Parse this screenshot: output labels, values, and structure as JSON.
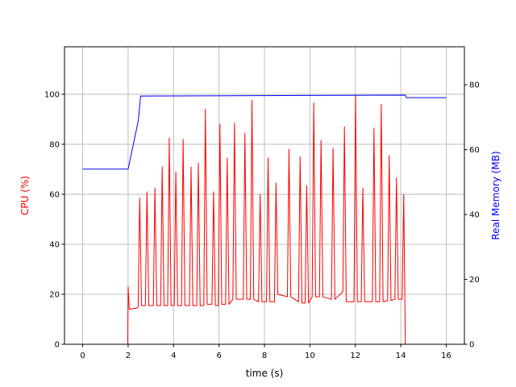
{
  "chart_data": {
    "type": "line",
    "xlabel": "time (s)",
    "ylabel": "CPU (%)",
    "y2label": "Real Memory (MB)",
    "ylabel_color": "#ff0000",
    "y2label_color": "#0000ff",
    "xlim": [
      -0.8,
      16.8
    ],
    "ylim": [
      0,
      119
    ],
    "y2lim": [
      0,
      91.7
    ],
    "xticks": [
      0,
      2,
      4,
      6,
      8,
      10,
      12,
      14,
      16
    ],
    "yticks": [
      0,
      20,
      40,
      60,
      80,
      100
    ],
    "y2ticks": [
      0,
      20,
      40,
      60,
      80
    ],
    "grid": true,
    "series": [
      {
        "color": "#ff0000",
        "axis": "y",
        "x": [
          0,
          1.98,
          2.0,
          2.05,
          2.4,
          2.44,
          2.51,
          2.59,
          2.76,
          2.83,
          2.91,
          3.11,
          3.18,
          3.26,
          3.43,
          3.5,
          3.58,
          3.74,
          3.81,
          3.89,
          4.03,
          4.1,
          4.18,
          4.35,
          4.42,
          4.5,
          4.7,
          4.77,
          4.85,
          5.02,
          5.09,
          5.17,
          5.33,
          5.4,
          5.48,
          5.69,
          5.76,
          5.84,
          5.97,
          6.04,
          6.12,
          6.29,
          6.36,
          6.44,
          6.61,
          6.68,
          6.76,
          7.07,
          7.14,
          7.22,
          7.38,
          7.45,
          7.53,
          7.74,
          7.81,
          7.89,
          8.09,
          8.16,
          8.24,
          8.44,
          8.51,
          8.59,
          9.01,
          9.08,
          9.16,
          9.5,
          9.57,
          9.65,
          9.79,
          9.86,
          9.94,
          10.1,
          10.17,
          10.25,
          10.42,
          10.49,
          10.57,
          10.95,
          11.02,
          11.1,
          11.45,
          11.52,
          11.6,
          11.94,
          12.01,
          12.09,
          12.26,
          12.33,
          12.41,
          12.75,
          12.82,
          12.9,
          13.07,
          13.14,
          13.22,
          13.42,
          13.49,
          13.57,
          13.74,
          13.81,
          13.89,
          14.06,
          14.13,
          14.2,
          16
        ],
        "values": [
          0,
          0,
          23,
          14,
          14.5,
          15,
          58.5,
          15.5,
          15.5,
          61,
          15.5,
          15.5,
          62.5,
          15.5,
          15.5,
          71,
          15.5,
          15.5,
          82.5,
          15.5,
          15.5,
          69,
          15.5,
          15.5,
          82,
          15.5,
          15.5,
          71,
          15.5,
          15.5,
          72.5,
          15.5,
          15.5,
          94,
          16,
          16,
          61,
          15.5,
          15.5,
          88,
          16,
          16,
          74.5,
          16,
          18,
          88.5,
          18,
          18,
          84.5,
          18,
          18,
          97.5,
          18,
          17,
          60,
          17,
          17,
          74.5,
          17,
          17,
          64.5,
          20,
          19,
          78,
          19,
          17,
          75,
          16.5,
          16.5,
          63.5,
          16.5,
          19,
          96.5,
          19,
          19,
          81.5,
          19,
          18,
          78.5,
          18,
          21,
          87,
          17,
          17,
          99.5,
          17,
          17,
          62.5,
          17,
          17,
          86.5,
          17,
          17,
          96,
          17,
          17.5,
          75.5,
          17.5,
          18,
          66.5,
          18,
          18,
          60,
          0,
          0
        ]
      },
      {
        "color": "#0000ff",
        "axis": "y2",
        "x": [
          0,
          2.0,
          2.45,
          2.55,
          14.2,
          14.25,
          16
        ],
        "values": [
          54,
          54,
          69,
          76.5,
          76.8,
          76,
          76
        ]
      }
    ]
  }
}
